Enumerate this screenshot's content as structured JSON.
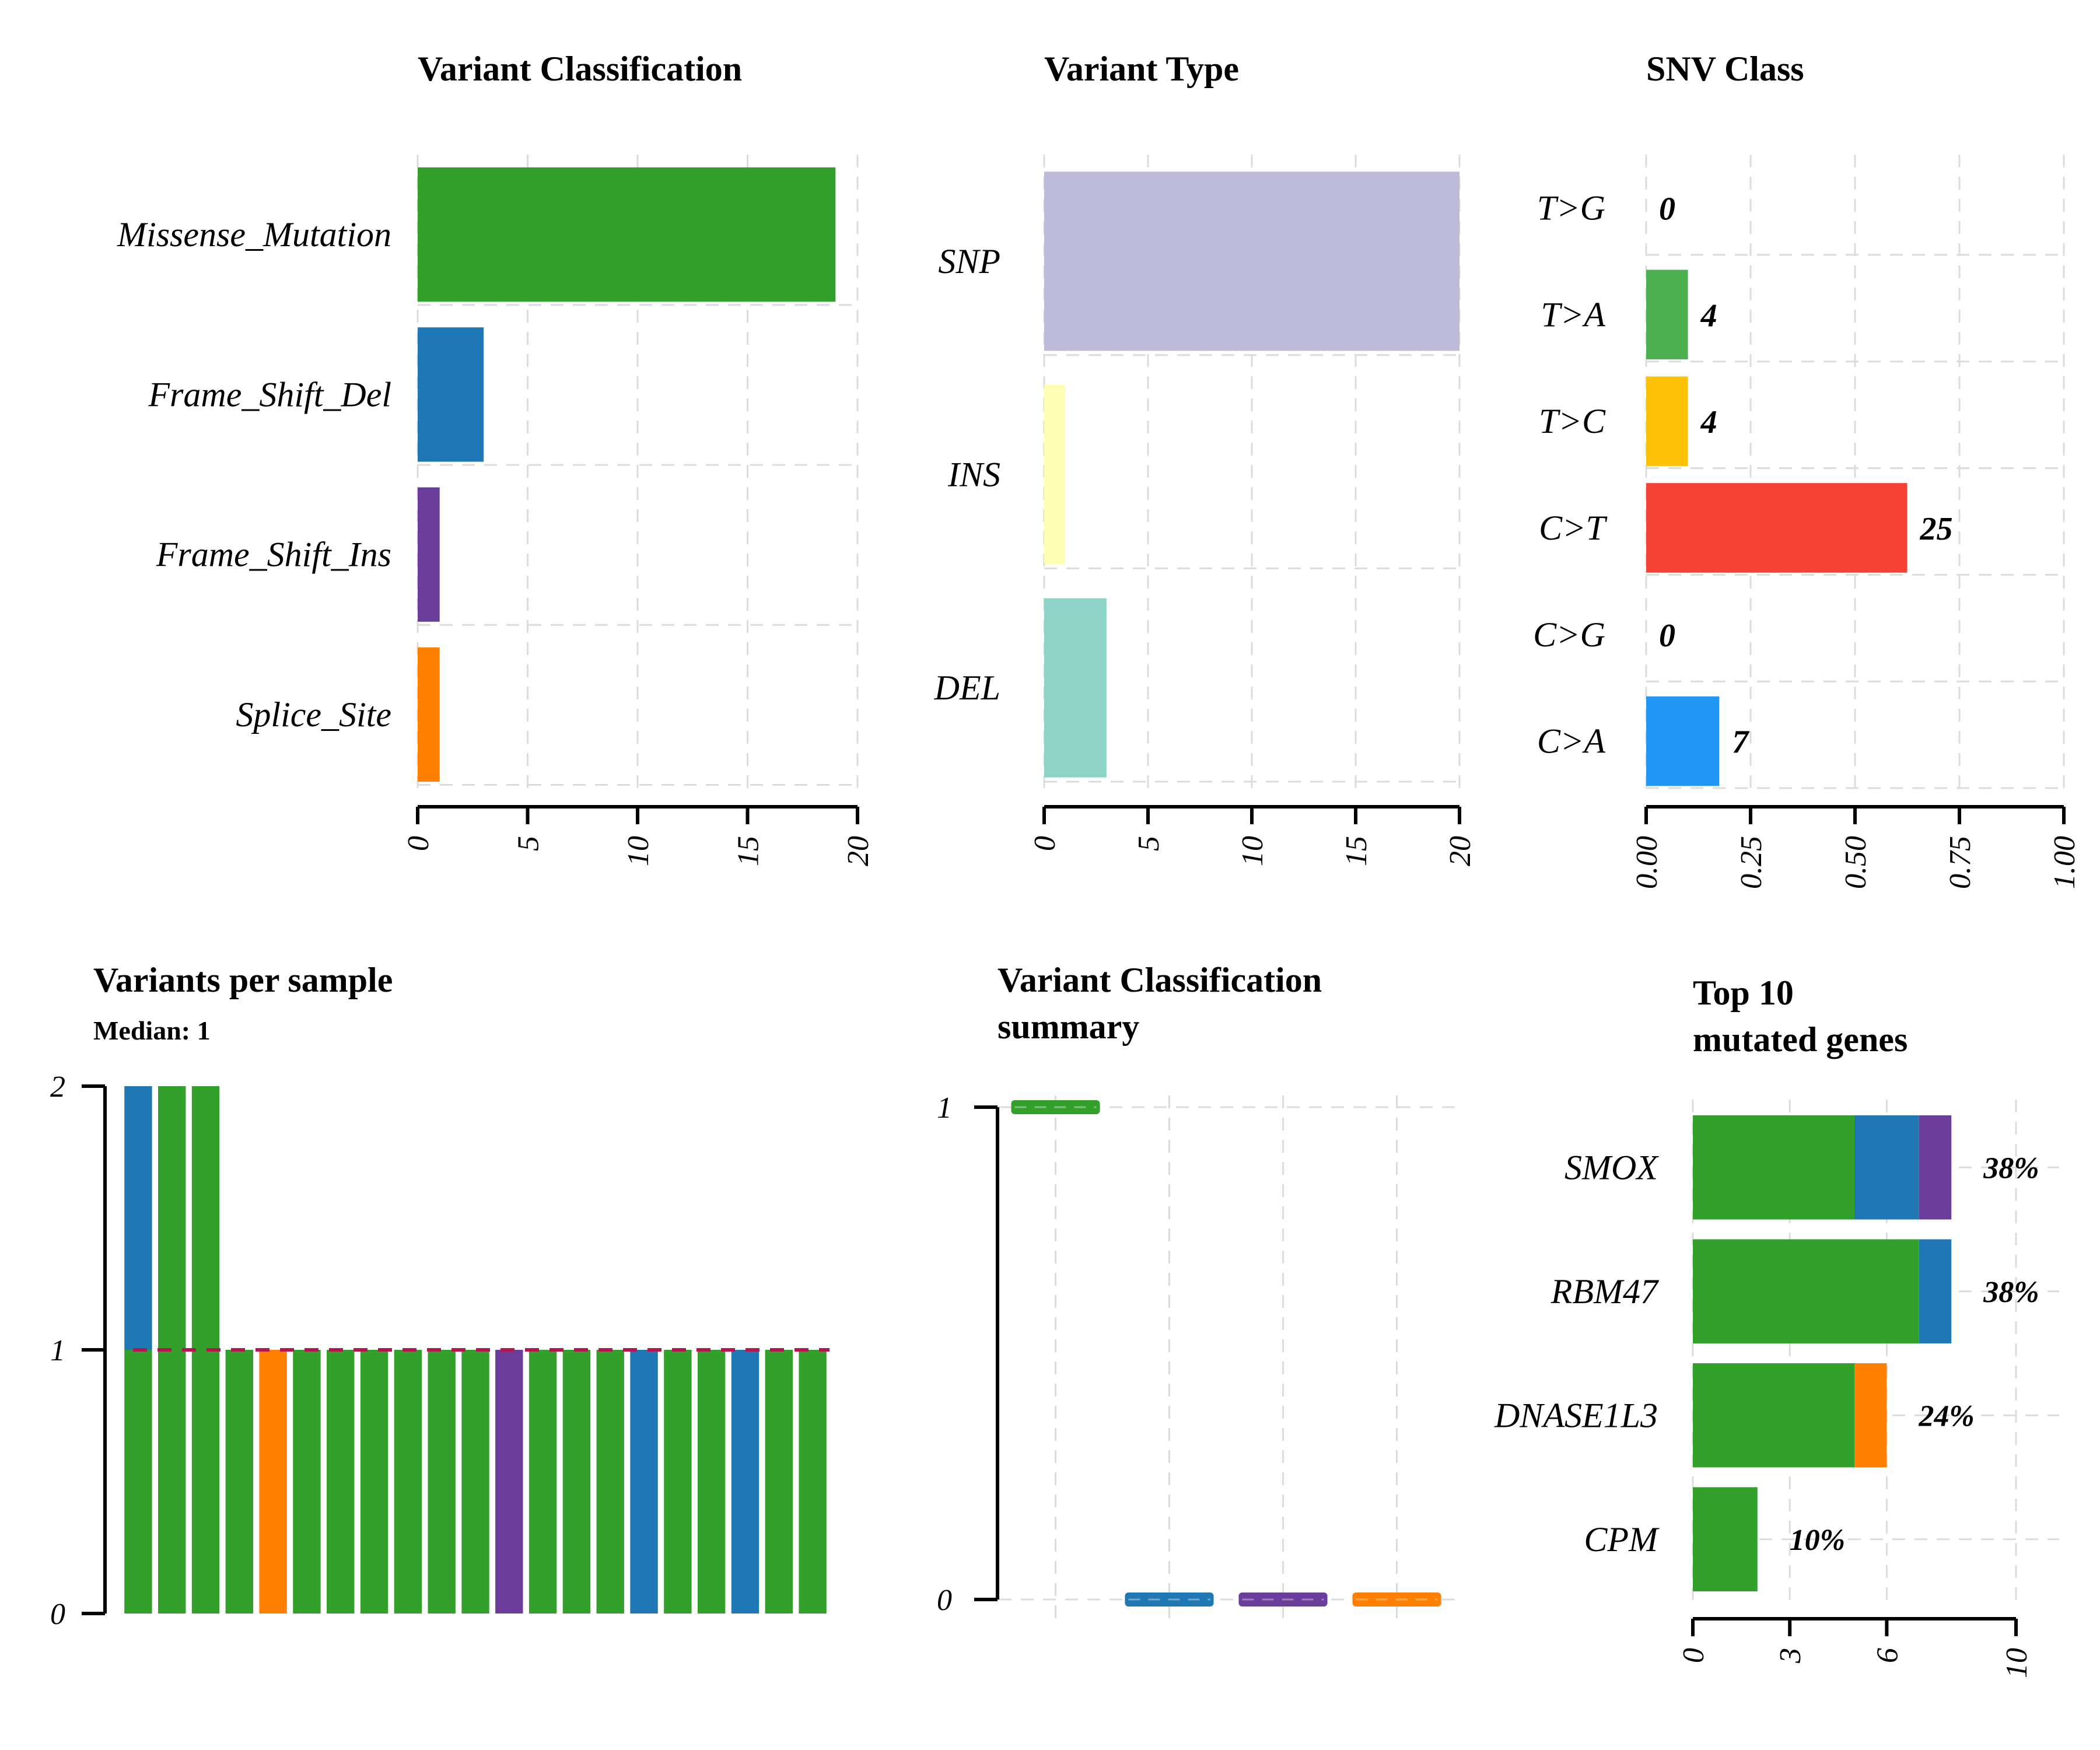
{
  "chart_data": [
    {
      "panel": "variant_classification",
      "type": "bar",
      "orientation": "horizontal",
      "title": "Variant Classification",
      "categories": [
        "Missense_Mutation",
        "Frame_Shift_Del",
        "Frame_Shift_Ins",
        "Splice_Site"
      ],
      "values": [
        19,
        3,
        1,
        1
      ],
      "colors": [
        "#33a02c",
        "#1f78b4",
        "#6a3d9a",
        "#ff7f00"
      ],
      "xlim": [
        0,
        20
      ],
      "xticks": [
        "0",
        "5",
        "10",
        "15",
        "20"
      ],
      "grid": true
    },
    {
      "panel": "variant_type",
      "type": "bar",
      "orientation": "horizontal",
      "title": "Variant Type",
      "categories": [
        "SNP",
        "INS",
        "DEL"
      ],
      "values": [
        20,
        1,
        3
      ],
      "colors": [
        "#bebada",
        "#ffffb3",
        "#8dd3c7"
      ],
      "xlim": [
        0,
        20
      ],
      "xticks": [
        "0",
        "5",
        "10",
        "15",
        "20"
      ],
      "grid": true
    },
    {
      "panel": "snv_class",
      "type": "bar",
      "orientation": "horizontal",
      "title": "SNV Class",
      "categories": [
        "T>G",
        "T>A",
        "T>C",
        "C>T",
        "C>G",
        "C>A"
      ],
      "fractions": [
        0,
        0.1,
        0.1,
        0.625,
        0,
        0.175
      ],
      "labels": [
        "0",
        "4",
        "4",
        "25",
        "0",
        "7"
      ],
      "colors": [
        "#6a3d9a",
        "#4caf50",
        "#ffc107",
        "#f44336",
        "#ff9800",
        "#2196f3"
      ],
      "xlim": [
        0,
        1
      ],
      "xticks": [
        "0.00",
        "0.25",
        "0.50",
        "0.75",
        "1.00"
      ],
      "grid": true
    },
    {
      "panel": "variants_per_sample",
      "type": "bar",
      "stacked": true,
      "title": "Variants per sample",
      "subtitle": "Median: 1",
      "ylim": [
        0,
        2
      ],
      "yticks": [
        "0",
        "1",
        "2"
      ],
      "median": 1,
      "samples": [
        [
          {
            "class": "Missense_Mutation",
            "value": 1
          },
          {
            "class": "Frame_Shift_Del",
            "value": 1
          }
        ],
        [
          {
            "class": "Missense_Mutation",
            "value": 2
          }
        ],
        [
          {
            "class": "Missense_Mutation",
            "value": 2
          }
        ],
        [
          {
            "class": "Missense_Mutation",
            "value": 1
          }
        ],
        [
          {
            "class": "Splice_Site",
            "value": 1
          }
        ],
        [
          {
            "class": "Missense_Mutation",
            "value": 1
          }
        ],
        [
          {
            "class": "Missense_Mutation",
            "value": 1
          }
        ],
        [
          {
            "class": "Missense_Mutation",
            "value": 1
          }
        ],
        [
          {
            "class": "Missense_Mutation",
            "value": 1
          }
        ],
        [
          {
            "class": "Missense_Mutation",
            "value": 1
          }
        ],
        [
          {
            "class": "Missense_Mutation",
            "value": 1
          }
        ],
        [
          {
            "class": "Frame_Shift_Ins",
            "value": 1
          }
        ],
        [
          {
            "class": "Missense_Mutation",
            "value": 1
          }
        ],
        [
          {
            "class": "Missense_Mutation",
            "value": 1
          }
        ],
        [
          {
            "class": "Missense_Mutation",
            "value": 1
          }
        ],
        [
          {
            "class": "Frame_Shift_Del",
            "value": 1
          }
        ],
        [
          {
            "class": "Missense_Mutation",
            "value": 1
          }
        ],
        [
          {
            "class": "Missense_Mutation",
            "value": 1
          }
        ],
        [
          {
            "class": "Frame_Shift_Del",
            "value": 1
          }
        ],
        [
          {
            "class": "Missense_Mutation",
            "value": 1
          }
        ],
        [
          {
            "class": "Missense_Mutation",
            "value": 1
          }
        ]
      ],
      "class_colors": {
        "Missense_Mutation": "#33a02c",
        "Frame_Shift_Del": "#1f78b4",
        "Frame_Shift_Ins": "#6a3d9a",
        "Splice_Site": "#ff7f00"
      },
      "median_color": "#b2184f"
    },
    {
      "panel": "variant_classification_summary",
      "type": "box",
      "title": "Variant Classification\nsummary",
      "ylim": [
        0,
        1
      ],
      "yticks": [
        "0",
        "1"
      ],
      "categories": [
        "Missense_Mutation",
        "Frame_Shift_Del",
        "Frame_Shift_Ins",
        "Splice_Site"
      ],
      "medians": [
        1,
        0,
        0,
        0
      ],
      "colors": [
        "#33a02c",
        "#1f78b4",
        "#6a3d9a",
        "#ff7f00"
      ]
    },
    {
      "panel": "top_mutated_genes",
      "type": "bar",
      "orientation": "horizontal",
      "stacked": true,
      "title": "Top 10\nmutated genes",
      "genes": [
        {
          "name": "SMOX",
          "label": "38%",
          "segments": [
            {
              "class": "Missense_Mutation",
              "value": 5
            },
            {
              "class": "Frame_Shift_Del",
              "value": 2
            },
            {
              "class": "Frame_Shift_Ins",
              "value": 1
            }
          ]
        },
        {
          "name": "RBM47",
          "label": "38%",
          "segments": [
            {
              "class": "Missense_Mutation",
              "value": 7
            },
            {
              "class": "Frame_Shift_Del",
              "value": 1
            }
          ]
        },
        {
          "name": "DNASE1L3",
          "label": "24%",
          "segments": [
            {
              "class": "Missense_Mutation",
              "value": 5
            },
            {
              "class": "Splice_Site",
              "value": 1
            }
          ]
        },
        {
          "name": "CPM",
          "label": "10%",
          "segments": [
            {
              "class": "Missense_Mutation",
              "value": 2
            }
          ]
        }
      ],
      "class_colors": {
        "Missense_Mutation": "#33a02c",
        "Frame_Shift_Del": "#1f78b4",
        "Frame_Shift_Ins": "#6a3d9a",
        "Splice_Site": "#ff7f00"
      },
      "xlim": [
        0,
        10
      ],
      "xticks": [
        "0",
        "3",
        "6",
        "10"
      ],
      "grid": true
    }
  ]
}
